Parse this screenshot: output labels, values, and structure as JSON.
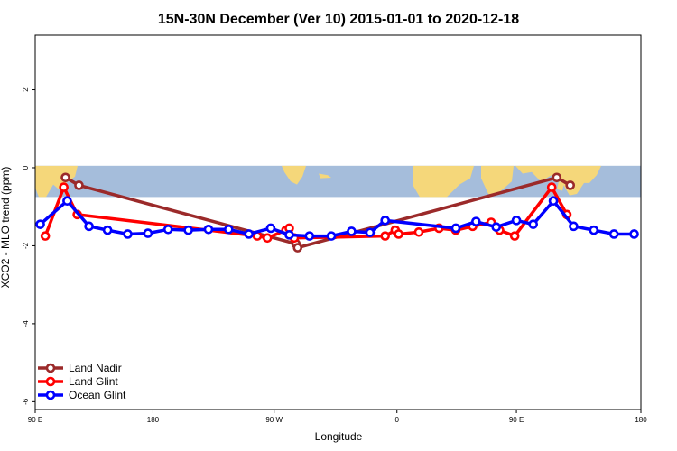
{
  "chart_data": {
    "type": "line",
    "title": "15N-30N December (Ver 10)   2015-01-01 to 2020-12-18",
    "xlabel": "Longitude",
    "ylabel": "XCO2 - MLO trend (ppm)",
    "xlim": [
      90,
      450
    ],
    "ylim": [
      -6.2,
      3.4
    ],
    "x_ticks": [
      {
        "value": 90,
        "label": "90 E"
      },
      {
        "value": 160,
        "label": "180"
      },
      {
        "value": 232,
        "label": "90 W"
      },
      {
        "value": 305,
        "label": "0"
      },
      {
        "value": 376,
        "label": "90 E"
      },
      {
        "value": 450,
        "label": "180"
      }
    ],
    "y_ticks": [
      {
        "value": 2,
        "label": "2"
      },
      {
        "value": 0,
        "label": "0"
      },
      {
        "value": -2,
        "label": "-2"
      },
      {
        "value": -4,
        "label": "-4"
      },
      {
        "value": -6,
        "label": "-6"
      }
    ],
    "background_band": {
      "y_top": 0.05,
      "y_bottom": -0.75,
      "ocean_color": "#a5bddb",
      "land_color": "#f5d77a"
    },
    "legend_position": "bottom-left",
    "series": [
      {
        "name": "Land Nadir",
        "color": "#9b2a2a",
        "points": [
          [
            108,
            -0.25
          ],
          [
            116,
            -0.45
          ],
          [
            245,
            -1.95
          ],
          [
            246,
            -2.05
          ],
          [
            400,
            -0.25
          ],
          [
            408,
            -0.45
          ]
        ]
      },
      {
        "name": "Land Glint",
        "color": "#ff0000",
        "points": [
          [
            96,
            -1.75
          ],
          [
            107,
            -0.5
          ],
          [
            115,
            -1.2
          ],
          [
            222,
            -1.75
          ],
          [
            228,
            -1.8
          ],
          [
            239,
            -1.6
          ],
          [
            241,
            -1.55
          ],
          [
            244,
            -1.8
          ],
          [
            298,
            -1.75
          ],
          [
            304,
            -1.6
          ],
          [
            306,
            -1.7
          ],
          [
            318,
            -1.65
          ],
          [
            330,
            -1.55
          ],
          [
            340,
            -1.6
          ],
          [
            350,
            -1.5
          ],
          [
            361,
            -1.4
          ],
          [
            366,
            -1.6
          ],
          [
            375,
            -1.75
          ],
          [
            397,
            -0.5
          ],
          [
            406,
            -1.2
          ]
        ]
      },
      {
        "name": "Ocean Glint",
        "color": "#0000ff",
        "points": [
          [
            93,
            -1.45
          ],
          [
            109,
            -0.85
          ],
          [
            122,
            -1.5
          ],
          [
            133,
            -1.6
          ],
          [
            145,
            -1.7
          ],
          [
            157,
            -1.68
          ],
          [
            169,
            -1.58
          ],
          [
            181,
            -1.6
          ],
          [
            193,
            -1.58
          ],
          [
            205,
            -1.58
          ],
          [
            217,
            -1.7
          ],
          [
            230,
            -1.55
          ],
          [
            241,
            -1.72
          ],
          [
            253,
            -1.75
          ],
          [
            266,
            -1.75
          ],
          [
            278,
            -1.63
          ],
          [
            289,
            -1.66
          ],
          [
            298,
            -1.35
          ],
          [
            340,
            -1.55
          ],
          [
            352,
            -1.38
          ],
          [
            364,
            -1.52
          ],
          [
            376,
            -1.35
          ],
          [
            386,
            -1.45
          ],
          [
            398,
            -0.85
          ],
          [
            410,
            -1.5
          ],
          [
            422,
            -1.6
          ],
          [
            434,
            -1.7
          ],
          [
            446,
            -1.7
          ]
        ]
      }
    ]
  }
}
